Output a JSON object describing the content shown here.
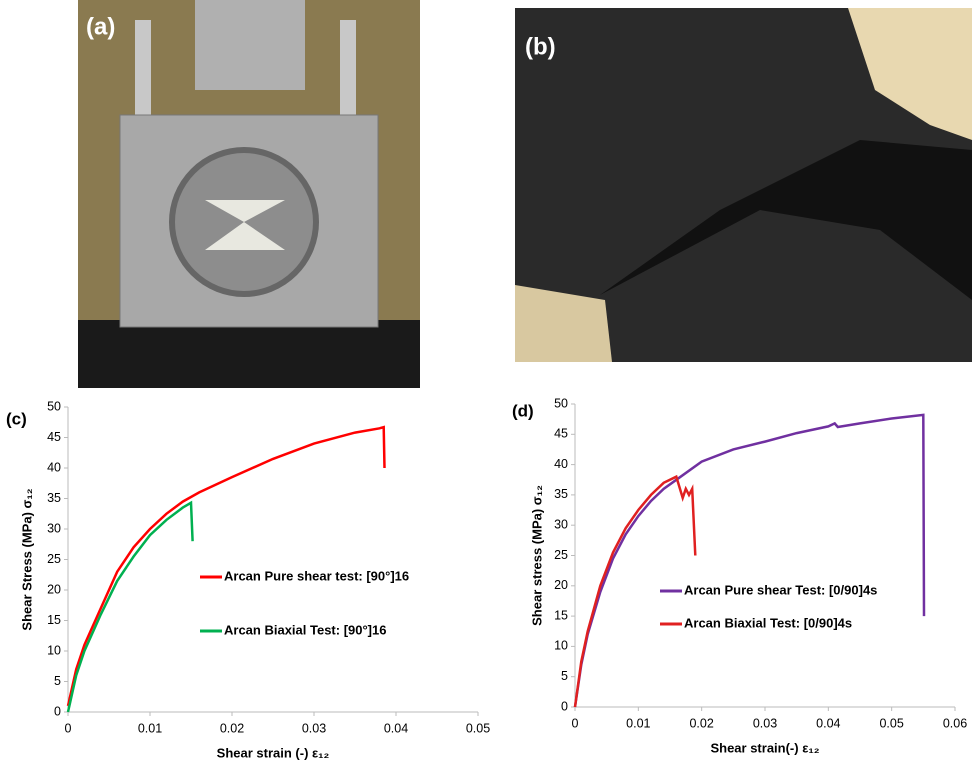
{
  "photo_labels": [
    "(a)",
    "(b)"
  ],
  "chart_data": [
    {
      "type": "line",
      "panel_label": "(c)",
      "xlabel": "Shear strain (-) ε₁₂",
      "ylabel": "Shear Stress (MPa) σ₁₂",
      "xlim": [
        0,
        0.05
      ],
      "xticks": [
        0,
        0.01,
        0.02,
        0.03,
        0.04,
        0.05
      ],
      "ylim": [
        0,
        50
      ],
      "yticks": [
        0,
        5,
        10,
        15,
        20,
        25,
        30,
        35,
        40,
        45,
        50
      ],
      "series": [
        {
          "name": "Arcan Pure shear test: [90°]16",
          "color": "#ff0000",
          "x": [
            0,
            0.001,
            0.002,
            0.004,
            0.006,
            0.008,
            0.01,
            0.012,
            0.014,
            0.016,
            0.02,
            0.025,
            0.03,
            0.035,
            0.038,
            0.0385,
            0.0386
          ],
          "values": [
            1,
            7,
            11,
            17,
            23,
            27,
            30,
            32.5,
            34.5,
            36,
            38.5,
            41.5,
            44,
            45.8,
            46.5,
            46.7,
            40
          ]
        },
        {
          "name": "Arcan Biaxial Test: [90°]16",
          "color": "#00b050",
          "x": [
            0,
            0.001,
            0.002,
            0.004,
            0.006,
            0.008,
            0.01,
            0.012,
            0.014,
            0.015,
            0.0152
          ],
          "values": [
            0,
            6,
            10,
            16,
            21.5,
            25.5,
            29,
            31.5,
            33.5,
            34.3,
            28
          ]
        }
      ]
    },
    {
      "type": "line",
      "panel_label": "(d)",
      "xlabel": "Shear strain(-) ε₁₂",
      "ylabel": "Shear stress (MPa) σ₁₂",
      "xlim": [
        0,
        0.06
      ],
      "xticks": [
        0,
        0.01,
        0.02,
        0.03,
        0.04,
        0.05,
        0.06
      ],
      "ylim": [
        0,
        50
      ],
      "yticks": [
        0,
        5,
        10,
        15,
        20,
        25,
        30,
        35,
        40,
        45,
        50
      ],
      "series": [
        {
          "name": "Arcan Pure shear Test: [0/90]4s",
          "color": "#7030a0",
          "x": [
            0,
            0.001,
            0.002,
            0.004,
            0.006,
            0.008,
            0.01,
            0.012,
            0.014,
            0.016,
            0.02,
            0.025,
            0.03,
            0.035,
            0.04,
            0.041,
            0.0415,
            0.045,
            0.05,
            0.055,
            0.0551
          ],
          "values": [
            0,
            7,
            12,
            19,
            24.5,
            28.5,
            31.5,
            34,
            36,
            37.5,
            40.5,
            42.5,
            43.8,
            45.2,
            46.3,
            46.8,
            46.2,
            46.8,
            47.6,
            48.2,
            15
          ]
        },
        {
          "name": "Arcan Biaxial Test: [0/90]4s",
          "color": "#e02020",
          "x": [
            0,
            0.001,
            0.002,
            0.004,
            0.006,
            0.008,
            0.01,
            0.012,
            0.014,
            0.016,
            0.017,
            0.0175,
            0.018,
            0.0185,
            0.019
          ],
          "values": [
            0,
            7.5,
            12.5,
            20,
            25.5,
            29.5,
            32.5,
            35,
            37,
            38,
            34.5,
            36,
            35,
            36,
            25
          ]
        }
      ]
    }
  ]
}
